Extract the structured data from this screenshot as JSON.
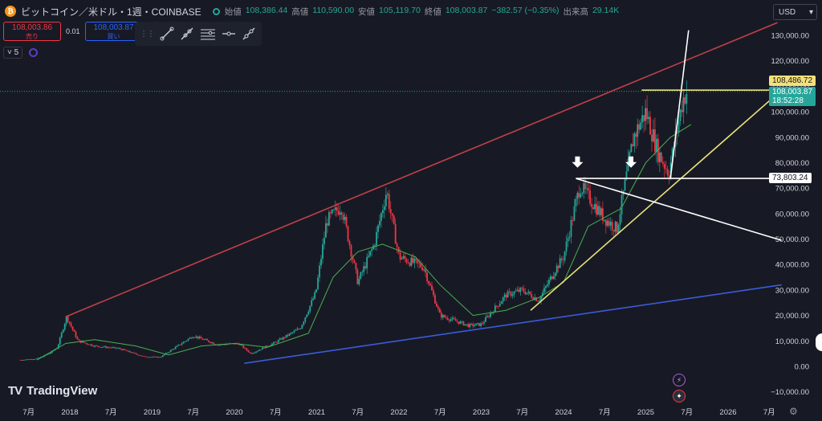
{
  "header": {
    "coin_icon": "bitcoin-icon",
    "symbol_title": "ビットコイン／米ドル・1週・COINBASE",
    "open_label": "始値",
    "open_value": "108,386.44",
    "high_label": "高値",
    "high_value": "110,590.00",
    "low_label": "安値",
    "low_value": "105,119.70",
    "close_label": "終値",
    "close_value": "108,003.87",
    "change_value": "−382.57 (−0.35%)",
    "volume_label": "出来高",
    "volume_value": "29.14K"
  },
  "trade": {
    "sell_price": "108,003.86",
    "sell_label": "売り",
    "spread": "0.01",
    "buy_price": "108,003.87",
    "buy_label": "買い"
  },
  "currency": "USD",
  "indicator": {
    "count": "5"
  },
  "price_tags": {
    "yellow": "108,486.72",
    "last_price": "108,003.87",
    "countdown": "18:52:28",
    "white_level": "73,803.24"
  },
  "logo_text": "TradingView",
  "colors": {
    "background": "#171a24",
    "up": "#26a69a",
    "down": "#f23645",
    "red_line": "#c0404a",
    "blue_line": "#3b5bdb",
    "yellow_line": "#e8e07a",
    "white_line": "#ffffff",
    "ma_line": "#4caf50"
  },
  "chart_data": {
    "type": "candlestick",
    "title": "",
    "x_ticks": [
      "7月",
      "2018",
      "7月",
      "2019",
      "7月",
      "2020",
      "7月",
      "2021",
      "7月",
      "2022",
      "7月",
      "2023",
      "7月",
      "2024",
      "7月",
      "2025",
      "7月",
      "2026",
      "7月"
    ],
    "y_ticks": [
      "130,000.00",
      "120,000.00",
      "110,000.00",
      "100,000.00",
      "90,000.00",
      "80,000.00",
      "70,000.00",
      "60,000.00",
      "50,000.00",
      "40,000.00",
      "30,000.00",
      "20,000.00",
      "10,000.00",
      "0.00",
      "−10,000.00"
    ],
    "ylim": [
      -13000,
      139000
    ],
    "xlim": [
      2017.2,
      2026.9
    ],
    "grid": false,
    "price_path": [
      [
        2017.4,
        2500
      ],
      [
        2017.6,
        3000
      ],
      [
        2017.75,
        5000
      ],
      [
        2017.85,
        7500
      ],
      [
        2017.96,
        19500
      ],
      [
        2018.1,
        10000
      ],
      [
        2018.3,
        8000
      ],
      [
        2018.6,
        7000
      ],
      [
        2018.9,
        3800
      ],
      [
        2019.1,
        3600
      ],
      [
        2019.5,
        12000
      ],
      [
        2019.8,
        8500
      ],
      [
        2020.05,
        9000
      ],
      [
        2020.2,
        5000
      ],
      [
        2020.5,
        9500
      ],
      [
        2020.8,
        15000
      ],
      [
        2020.99,
        29000
      ],
      [
        2021.12,
        57000
      ],
      [
        2021.3,
        63000
      ],
      [
        2021.5,
        33000
      ],
      [
        2021.7,
        48000
      ],
      [
        2021.85,
        69000
      ],
      [
        2022.0,
        43000
      ],
      [
        2022.3,
        39000
      ],
      [
        2022.5,
        20000
      ],
      [
        2022.85,
        16000
      ],
      [
        2023.0,
        16500
      ],
      [
        2023.3,
        28000
      ],
      [
        2023.5,
        30000
      ],
      [
        2023.7,
        26000
      ],
      [
        2023.9,
        38000
      ],
      [
        2024.0,
        43000
      ],
      [
        2024.2,
        71000
      ],
      [
        2024.5,
        58000
      ],
      [
        2024.65,
        54000
      ],
      [
        2024.85,
        90000
      ],
      [
        2025.0,
        100000
      ],
      [
        2025.15,
        84000
      ],
      [
        2025.28,
        76000
      ],
      [
        2025.45,
        105000
      ],
      [
        2025.5,
        108000
      ]
    ],
    "ma_path": [
      [
        2017.6,
        2500
      ],
      [
        2017.95,
        9000
      ],
      [
        2018.3,
        10500
      ],
      [
        2018.8,
        8000
      ],
      [
        2019.2,
        4500
      ],
      [
        2019.6,
        8000
      ],
      [
        2020.0,
        9000
      ],
      [
        2020.4,
        7500
      ],
      [
        2020.9,
        13000
      ],
      [
        2021.2,
        35000
      ],
      [
        2021.5,
        45000
      ],
      [
        2021.8,
        48000
      ],
      [
        2022.2,
        43000
      ],
      [
        2022.5,
        32000
      ],
      [
        2022.9,
        20000
      ],
      [
        2023.3,
        22000
      ],
      [
        2023.7,
        27000
      ],
      [
        2024.0,
        33000
      ],
      [
        2024.3,
        55000
      ],
      [
        2024.7,
        62000
      ],
      [
        2025.0,
        80000
      ],
      [
        2025.3,
        90000
      ],
      [
        2025.55,
        95000
      ]
    ],
    "drawings": [
      {
        "name": "red-trendline",
        "color": "#c0404a",
        "from": [
          2017.95,
          19500
        ],
        "to": [
          2026.6,
          135000
        ]
      },
      {
        "name": "blue-trendline",
        "color": "#3b5bdb",
        "from": [
          2020.12,
          1200
        ],
        "to": [
          2026.65,
          32000
        ]
      },
      {
        "name": "yellow-trendline",
        "color": "#e8e07a",
        "from": [
          2023.6,
          22000
        ],
        "to": [
          2026.65,
          108486.72
        ]
      },
      {
        "name": "white-descending-line",
        "color": "#ffffff",
        "from": [
          2024.15,
          73803.24
        ],
        "to": [
          2026.65,
          49500
        ]
      },
      {
        "name": "white-level-line",
        "color": "#ffffff",
        "from": [
          2024.15,
          73803.24
        ],
        "to": [
          2026.65,
          73803.24
        ]
      },
      {
        "name": "white-spike-line",
        "color": "#ffffff",
        "from": [
          2025.3,
          74000
        ],
        "to": [
          2025.52,
          132000
        ]
      },
      {
        "name": "yellow-level-line",
        "color": "#e8e07a",
        "from": [
          2024.95,
          108486.72
        ],
        "to": [
          2026.65,
          108486.72
        ]
      }
    ],
    "arrows": [
      {
        "name": "down-arrow-1",
        "x": 2024.17,
        "y": 78000
      },
      {
        "name": "down-arrow-2",
        "x": 2024.82,
        "y": 78000
      }
    ]
  }
}
